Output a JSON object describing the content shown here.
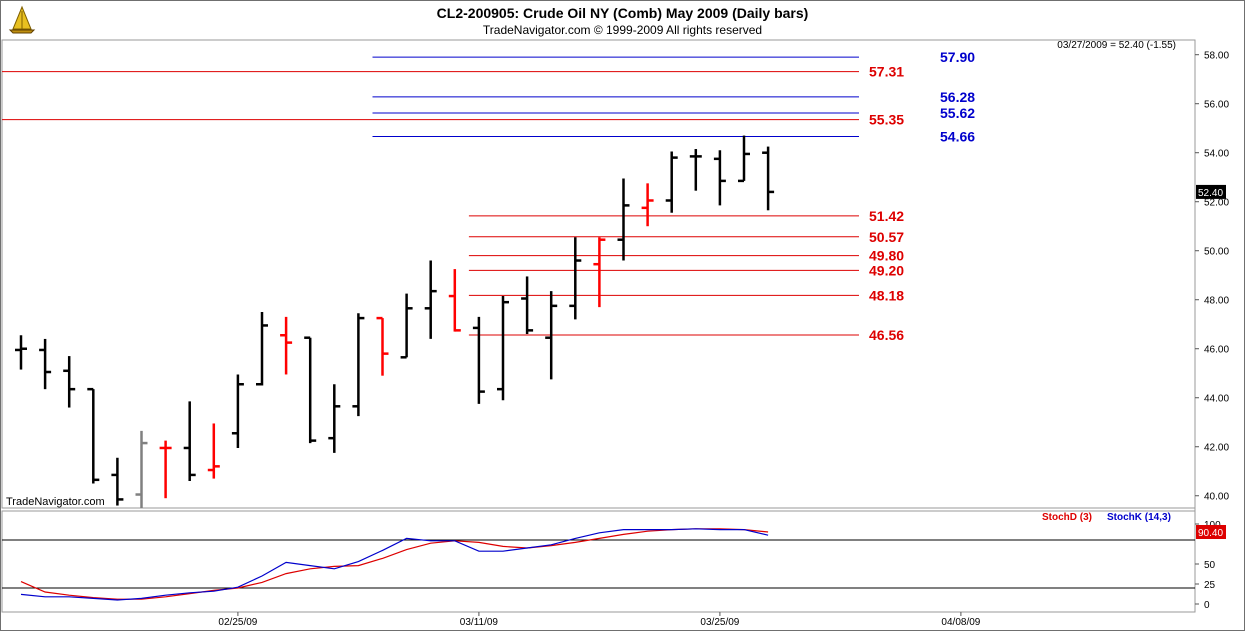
{
  "header": {
    "title": "CL2-200905:  Crude Oil NY (Comb) May 2009  (Daily bars)",
    "subtitle": "TradeNavigator.com © 1999-2009 All rights reserved"
  },
  "info_box": "03/27/2009 = 52.40 (-1.55)",
  "watermark": "TradeNavigator.com",
  "colors": {
    "up_bar": "#000000",
    "down_bar": "#ff0000",
    "neutral_bar": "#808080",
    "blue_level": "#0000cc",
    "red_level": "#dd0000",
    "stoch_d": "#dd0000",
    "stoch_k": "#0000cc"
  },
  "chart_data": [
    {
      "type": "ohlc",
      "panel": "price",
      "ylim": [
        39.5,
        58.6
      ],
      "y_ticks": [
        "58.00",
        "56.00",
        "54.00",
        "52.00",
        "50.00",
        "48.00",
        "46.00",
        "44.00",
        "42.00",
        "40.00"
      ],
      "x_tick_labels": [
        {
          "label": "02/25/09",
          "bar_index": 9
        },
        {
          "label": "03/11/09",
          "bar_index": 19
        },
        {
          "label": "03/25/09",
          "bar_index": 29
        },
        {
          "label": "04/08/09",
          "bar_index": 39
        }
      ],
      "last_value_label": "52.40",
      "bars": [
        {
          "o": 45.95,
          "h": 46.55,
          "l": 45.15,
          "c": 46.0,
          "color": "up"
        },
        {
          "o": 45.95,
          "h": 46.4,
          "l": 44.35,
          "c": 45.05,
          "color": "up"
        },
        {
          "o": 45.1,
          "h": 45.7,
          "l": 43.6,
          "c": 44.35,
          "color": "up"
        },
        {
          "o": 44.35,
          "h": 44.35,
          "l": 40.5,
          "c": 40.65,
          "color": "up"
        },
        {
          "o": 40.85,
          "h": 41.55,
          "l": 39.6,
          "c": 39.85,
          "color": "up"
        },
        {
          "o": 40.05,
          "h": 42.65,
          "l": 39.5,
          "c": 42.15,
          "color": "neutral"
        },
        {
          "o": 41.95,
          "h": 42.25,
          "l": 39.9,
          "c": 41.95,
          "color": "down"
        },
        {
          "o": 41.95,
          "h": 43.85,
          "l": 40.6,
          "c": 40.85,
          "color": "up"
        },
        {
          "o": 41.05,
          "h": 42.95,
          "l": 40.7,
          "c": 41.2,
          "color": "down"
        },
        {
          "o": 42.55,
          "h": 44.95,
          "l": 41.95,
          "c": 44.55,
          "color": "up"
        },
        {
          "o": 44.55,
          "h": 47.5,
          "l": 44.5,
          "c": 46.95,
          "color": "up"
        },
        {
          "o": 46.55,
          "h": 47.3,
          "l": 44.95,
          "c": 46.25,
          "color": "down"
        },
        {
          "o": 46.45,
          "h": 46.45,
          "l": 42.15,
          "c": 42.25,
          "color": "up"
        },
        {
          "o": 42.35,
          "h": 44.55,
          "l": 41.75,
          "c": 43.65,
          "color": "up"
        },
        {
          "o": 43.65,
          "h": 47.45,
          "l": 43.25,
          "c": 47.25,
          "color": "up"
        },
        {
          "o": 47.25,
          "h": 47.25,
          "l": 44.9,
          "c": 45.8,
          "color": "down"
        },
        {
          "o": 45.65,
          "h": 48.25,
          "l": 45.65,
          "c": 47.65,
          "color": "up"
        },
        {
          "o": 47.65,
          "h": 49.6,
          "l": 46.4,
          "c": 48.35,
          "color": "up"
        },
        {
          "o": 48.15,
          "h": 49.25,
          "l": 46.7,
          "c": 46.75,
          "color": "down"
        },
        {
          "o": 46.85,
          "h": 47.3,
          "l": 43.75,
          "c": 44.25,
          "color": "up"
        },
        {
          "o": 44.35,
          "h": 48.15,
          "l": 43.9,
          "c": 47.9,
          "color": "up"
        },
        {
          "o": 48.05,
          "h": 48.95,
          "l": 46.6,
          "c": 46.75,
          "color": "up"
        },
        {
          "o": 46.45,
          "h": 48.35,
          "l": 44.75,
          "c": 47.75,
          "color": "up"
        },
        {
          "o": 47.75,
          "h": 50.55,
          "l": 47.2,
          "c": 49.6,
          "color": "up"
        },
        {
          "o": 49.45,
          "h": 50.55,
          "l": 47.7,
          "c": 50.45,
          "color": "down"
        },
        {
          "o": 50.45,
          "h": 52.95,
          "l": 49.6,
          "c": 51.85,
          "color": "up"
        },
        {
          "o": 51.75,
          "h": 52.75,
          "l": 51.0,
          "c": 52.05,
          "color": "down"
        },
        {
          "o": 52.05,
          "h": 54.05,
          "l": 51.55,
          "c": 53.8,
          "color": "up"
        },
        {
          "o": 53.85,
          "h": 54.15,
          "l": 52.45,
          "c": 53.85,
          "color": "up"
        },
        {
          "o": 53.75,
          "h": 54.1,
          "l": 51.85,
          "c": 52.85,
          "color": "up"
        },
        {
          "o": 52.85,
          "h": 54.7,
          "l": 52.85,
          "c": 53.95,
          "color": "up"
        },
        {
          "o": 54.0,
          "h": 54.25,
          "l": 51.65,
          "c": 52.4,
          "color": "up"
        }
      ],
      "levels": [
        {
          "value": 57.9,
          "label": "57.90",
          "color": "blue",
          "start_bar": 15
        },
        {
          "value": 57.31,
          "label": "57.31",
          "color": "red",
          "start_bar": -1
        },
        {
          "value": 56.28,
          "label": "56.28",
          "color": "blue",
          "start_bar": 15
        },
        {
          "value": 55.62,
          "label": "55.62",
          "color": "blue",
          "start_bar": 15
        },
        {
          "value": 55.35,
          "label": "55.35",
          "color": "red",
          "start_bar": -1
        },
        {
          "value": 54.66,
          "label": "54.66",
          "color": "blue",
          "start_bar": 15
        },
        {
          "value": 51.42,
          "label": "51.42",
          "color": "red",
          "start_bar": 19
        },
        {
          "value": 50.57,
          "label": "50.57",
          "color": "red",
          "start_bar": 19
        },
        {
          "value": 49.8,
          "label": "49.80",
          "color": "red",
          "start_bar": 19
        },
        {
          "value": 49.2,
          "label": "49.20",
          "color": "red",
          "start_bar": 19
        },
        {
          "value": 48.18,
          "label": "48.18",
          "color": "red",
          "start_bar": 19
        },
        {
          "value": 46.56,
          "label": "46.56",
          "color": "red",
          "start_bar": 19
        }
      ]
    },
    {
      "type": "line",
      "panel": "stochastic",
      "ylim": [
        0,
        100
      ],
      "y_ticks": [
        "100",
        "50",
        "25",
        "0"
      ],
      "reference_lines": [
        80,
        20
      ],
      "last_value_label": "90.40",
      "series": [
        {
          "name": "StochD (3)",
          "color": "red",
          "values": [
            28,
            15,
            11,
            8,
            6,
            6,
            9,
            13,
            17,
            20,
            27,
            38,
            44,
            47,
            48,
            57,
            68,
            76,
            79,
            77,
            72,
            70,
            73,
            77,
            82,
            87,
            91,
            93,
            94,
            94,
            93,
            90
          ]
        },
        {
          "name": "StochK (14,3)",
          "color": "blue",
          "values": [
            12,
            9,
            9,
            7,
            5,
            7,
            11,
            14,
            16,
            21,
            35,
            52,
            48,
            44,
            53,
            67,
            82,
            79,
            79,
            66,
            66,
            70,
            74,
            82,
            89,
            93,
            93,
            93,
            94,
            93,
            93,
            86
          ]
        }
      ]
    }
  ]
}
